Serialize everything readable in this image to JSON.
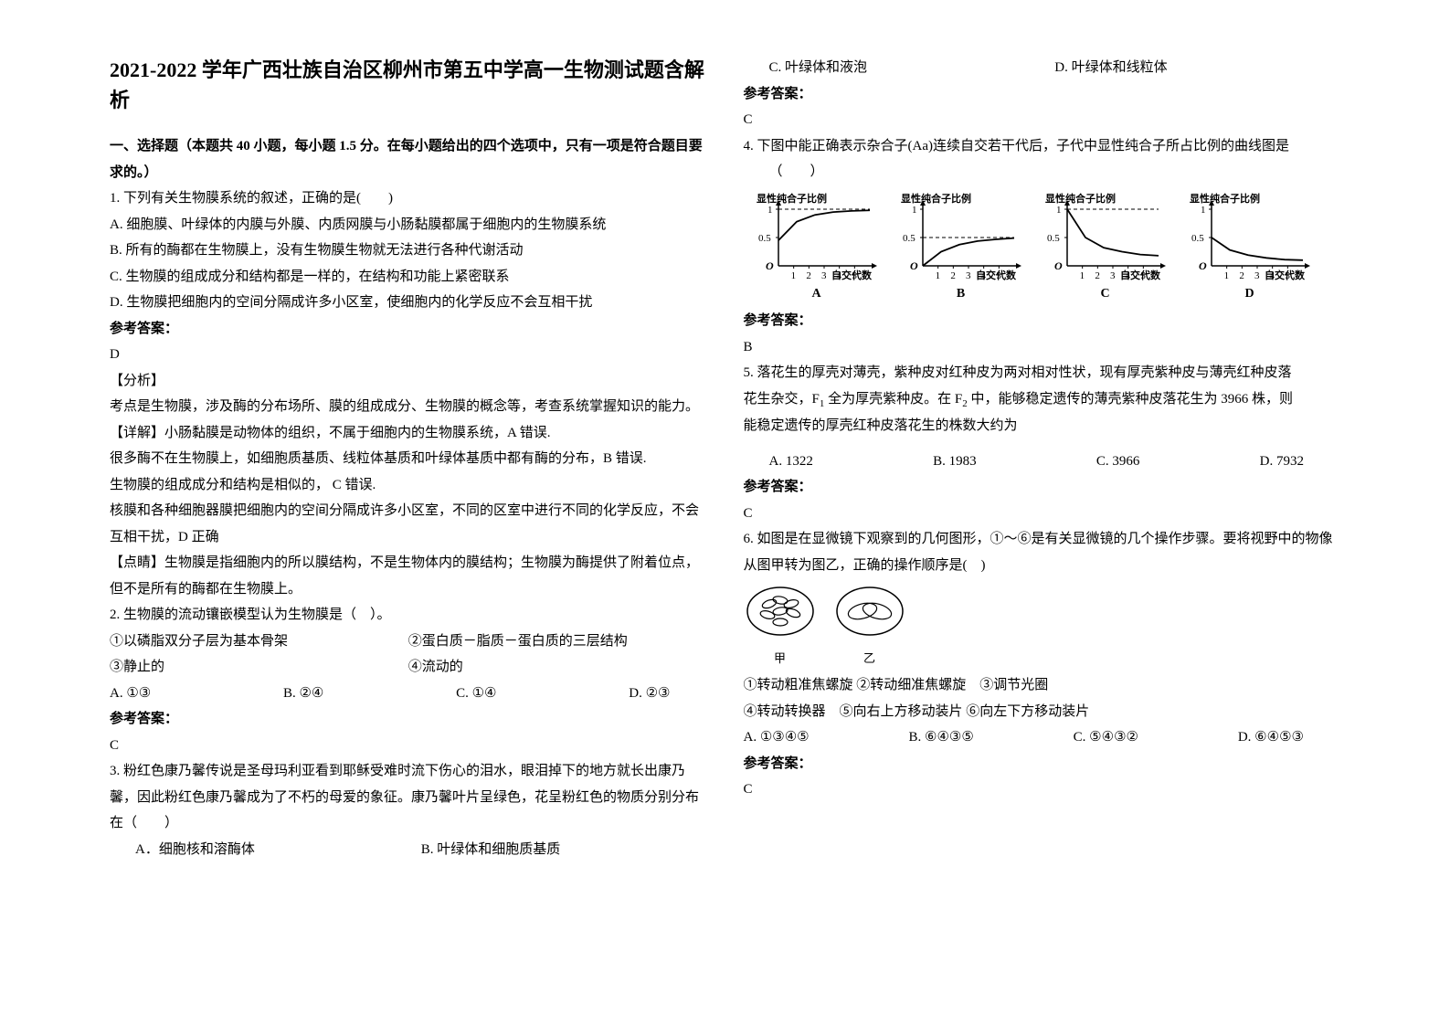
{
  "title": "2021-2022 学年广西壮族自治区柳州市第五中学高一生物测试题含解析",
  "section1": "一、选择题（本题共 40 小题，每小题 1.5 分。在每小题给出的四个选项中，只有一项是符合题目要求的。）",
  "answer_label": "参考答案：",
  "analysis_label": "【分析】",
  "detail_label": "【详解】",
  "hint_label": "【点睛】",
  "q1": {
    "stem": "1. 下列有关生物膜系统的叙述，正确的是(　　)",
    "A": "A.  细胞膜、叶绿体的内膜与外膜、内质网膜与小肠黏膜都属于细胞内的生物膜系统",
    "B": "B.  所有的酶都在生物膜上，没有生物膜生物就无法进行各种代谢活动",
    "C": "C.  生物膜的组成成分和结构都是一样的，在结构和功能上紧密联系",
    "D": "D.  生物膜把细胞内的空间分隔成许多小区室，使细胞内的化学反应不会互相干扰",
    "ans": "D",
    "analysis": "考点是生物膜，涉及酶的分布场所、膜的组成成分、生物膜的概念等，考查系统掌握知识的能力。",
    "detail1": "小肠黏膜是动物体的组织，不属于细胞内的生物膜系统，A 错误.",
    "detail2": "很多酶不在生物膜上，如细胞质基质、线粒体基质和叶绿体基质中都有酶的分布，B 错误.",
    "detail3": "生物膜的组成成分和结构是相似的，  C 错误.",
    "detail4": "核膜和各种细胞器膜把细胞内的空间分隔成许多小区室，不同的区室中进行不同的化学反应，不会互相干扰，D 正确",
    "hint": "生物膜是指细胞内的所以膜结构，不是生物体内的膜结构；生物膜为酶提供了附着位点，但不是所有的酶都在生物膜上。"
  },
  "q2": {
    "stem": "2. 生物膜的流动镶嵌模型认为生物膜是（　）。",
    "i1": "①以磷脂双分子层为基本骨架",
    "i2": "②蛋白质－脂质－蛋白质的三层结构",
    "i3": "③静止的",
    "i4": "④流动的",
    "A": "A.  ①③",
    "B": "B.  ②④",
    "C": "C.  ①④",
    "D": "D.  ②③",
    "ans": "C"
  },
  "q3": {
    "stem": "3. 粉红色康乃馨传说是圣母玛利亚看到耶稣受难时流下伤心的泪水，眼泪掉下的地方就长出康乃馨，因此粉红色康乃馨成为了不朽的母爱的象征。康乃馨叶片呈绿色，花呈粉红色的物质分别分布在（　　）",
    "A": "A．细胞核和溶酶体",
    "B": "B.  叶绿体和细胞质基质",
    "C": "C. 叶绿体和液泡",
    "D": "D.  叶绿体和线粒体",
    "ans": "C"
  },
  "q4": {
    "stem": "4. 下图中能正确表示杂合子(Aa)连续自交若干代后，子代中显性纯合子所占比例的曲线图是",
    "blank": "（　　）",
    "ylabel": "显性纯合子比例",
    "xlabel": "自交代数",
    "labels": {
      "A": "A",
      "B": "B",
      "C": "C",
      "D": "D"
    },
    "axis": {
      "ymax": 1,
      "ymid": 0.5,
      "xticks": [
        "1",
        "2",
        "3",
        "4",
        "5"
      ]
    },
    "curves": {
      "A": [
        0.45,
        0.78,
        0.9,
        0.95,
        0.97,
        0.98
      ],
      "B": [
        0,
        0.25,
        0.375,
        0.4375,
        0.468,
        0.49
      ],
      "C": [
        1,
        0.5,
        0.32,
        0.25,
        0.2,
        0.18
      ],
      "D": [
        0.5,
        0.28,
        0.19,
        0.14,
        0.11,
        0.1
      ]
    },
    "colors": {
      "axis": "#000000",
      "curve": "#000000",
      "dash": "#000000"
    },
    "ans": "B"
  },
  "q5": {
    "stem_l1": "5. 落花生的厚壳对薄壳，紫种皮对红种皮为两对相对性状，现有厚壳紫种皮与薄壳红种皮落",
    "stem_l2_pre": "花生杂交，F",
    "stem_l2_mid": " 全为厚壳紫种皮。在 F",
    "stem_l2_post": " 中，能够稳定遗传的薄壳紫种皮落花生为 3966 株，则",
    "stem_l3": "能稳定遗传的厚壳红种皮落花生的株数大约为",
    "A": "A.  1322",
    "B": "B. 1983",
    "C": "C. 3966",
    "D": "D. 7932",
    "ans": "C"
  },
  "q6": {
    "stem": "6. 如图是在显微镜下观察到的几何图形，①～⑥是有关显微镜的几个操作步骤。要将视野中的物像从图甲转为图乙，正确的操作顺序是(　)",
    "caps": {
      "left": "甲",
      "right": "乙"
    },
    "line1": "①转动粗准焦螺旋  ②转动细准焦螺旋　③调节光圈",
    "line2": "④转动转换器　⑤向右上方移动装片 ⑥向左下方移动装片",
    "A": "A. ①③④⑤",
    "B": "B. ⑥④③⑤",
    "C": "C. ⑤④③②",
    "D": "D. ⑥④⑤③",
    "ans": "C",
    "colors": {
      "stroke": "#000000"
    }
  }
}
